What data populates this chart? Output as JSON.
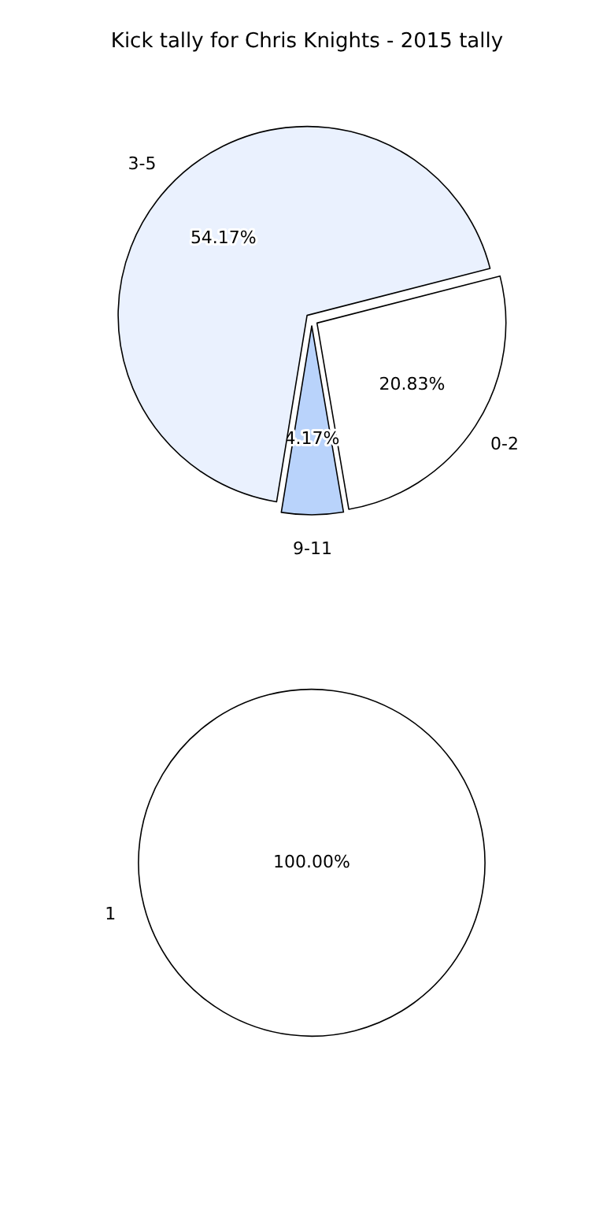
{
  "chart_data": [
    {
      "type": "pie",
      "title": "Kick tally for Chris Knights - 2015 tally",
      "categories": [
        "0-2",
        "9-11",
        "3-5"
      ],
      "values": [
        20.83,
        4.17,
        54.17
      ],
      "colors": [
        "#ffffff",
        "#b9d3fb",
        "#eaf1fe"
      ],
      "value_labels": [
        "20.83%",
        "4.17%",
        "54.17%"
      ]
    },
    {
      "type": "pie",
      "categories": [
        "1"
      ],
      "values": [
        100
      ],
      "colors": [
        "#ffffff"
      ],
      "value_labels": [
        "100.00%"
      ]
    }
  ]
}
